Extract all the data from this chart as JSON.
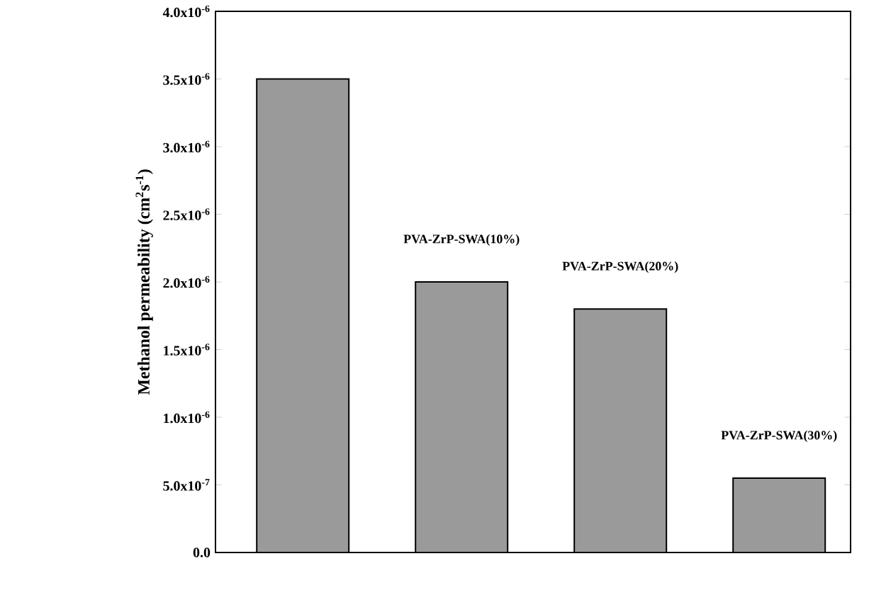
{
  "chart_data": {
    "type": "bar",
    "ylabel": "Methanol permeability (cm$^{2}$s$^{-1}$)",
    "categories": [
      null,
      null,
      null,
      null
    ],
    "values": [
      3.5e-06,
      2e-06,
      1.8e-06,
      5.5e-07
    ],
    "color": "#9a9a9a",
    "ylim": [
      0,
      4e-06
    ],
    "yticks": [
      "0.0",
      {
        "value": 5e-07,
        "label": "5.0x10$^{-7}$"
      },
      {
        "value": 1e-06,
        "label": "1.0x10$^{-6}$"
      },
      {
        "value": 1.5e-06,
        "label": "1.5x10$^{-6}$"
      },
      {
        "value": 2e-06,
        "label": "2.0x10$^{-6}$"
      },
      {
        "value": 2.5e-06,
        "label": "2.5x10$^{-6}$"
      },
      {
        "value": 3e-06,
        "label": "3.0x10$^{-6}$"
      },
      {
        "value": 3.5e-06,
        "label": "3.5x10$^{-6}$"
      },
      {
        "value": 4e-06,
        "label": "4.0x10$^{-6}$"
      }
    ],
    "annotations": [
      "PVA-ZrP-SWA(10%)",
      "PVA-ZrP-SWA(20%)",
      "PVA-ZrP-SWA(30%)"
    ],
    "tick_labels": "y"
  }
}
